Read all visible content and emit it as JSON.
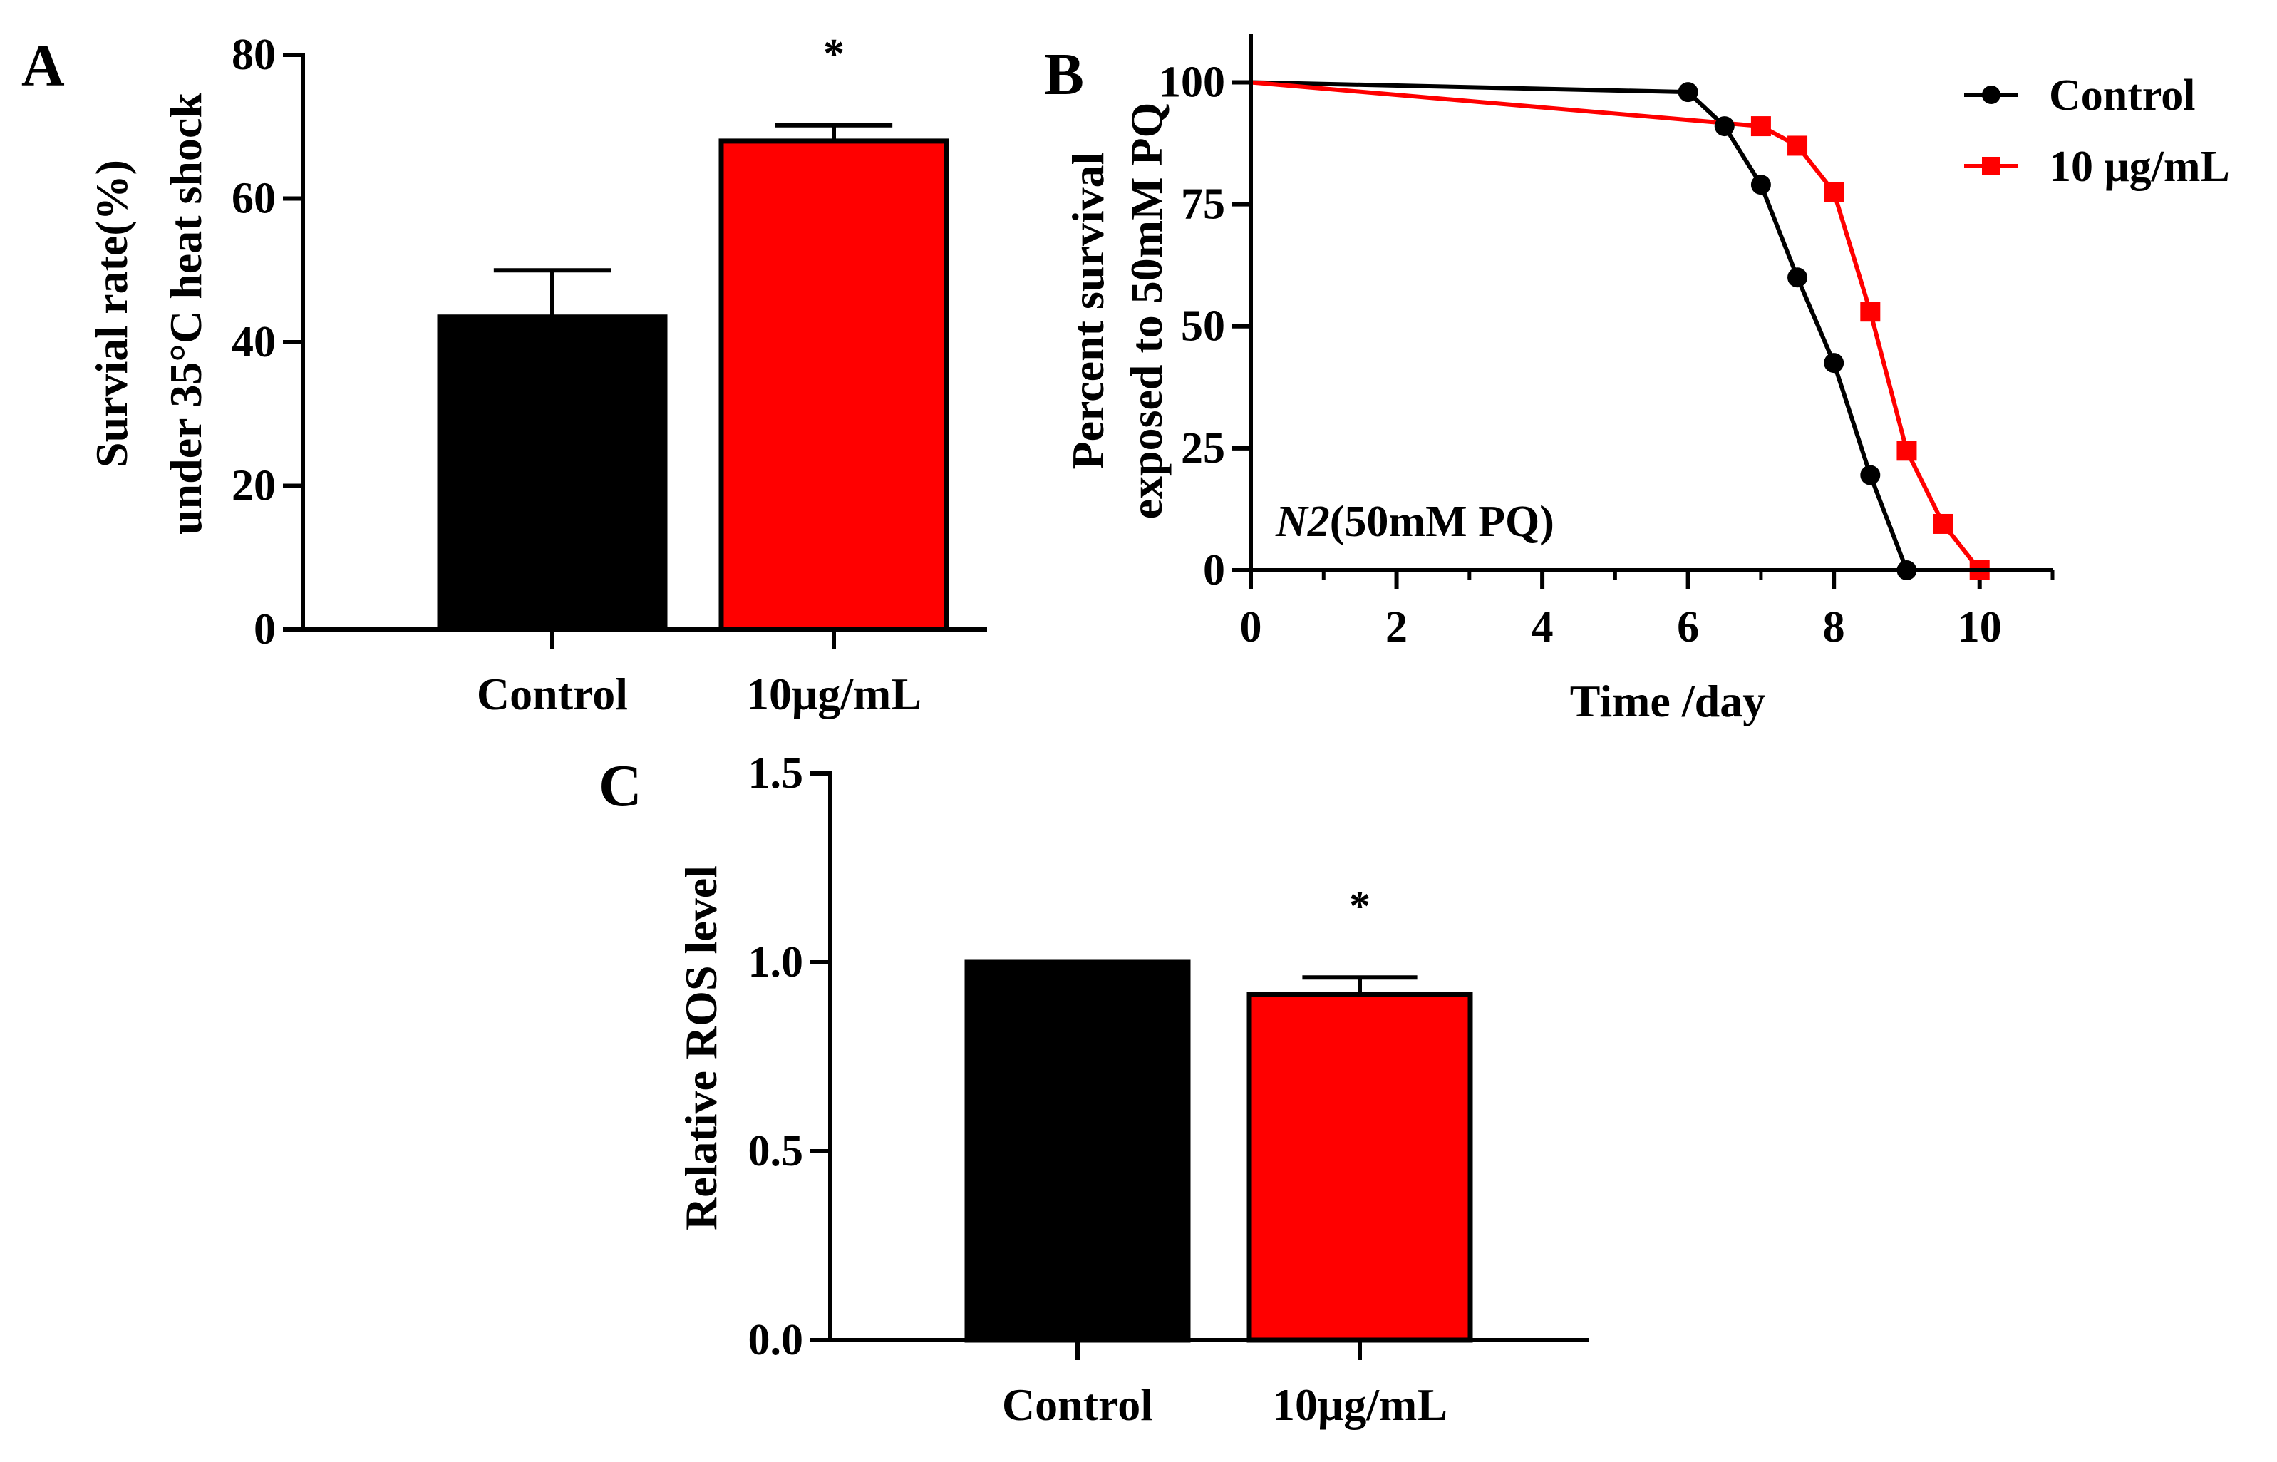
{
  "figure": {
    "colors": {
      "control": "#000000",
      "treated": "#ff0000",
      "axis": "#000000"
    }
  },
  "chart_data": [
    {
      "panel": "A",
      "type": "bar",
      "categories": [
        "Control",
        "10μg/mL"
      ],
      "values": [
        43.5,
        68
      ],
      "errors": [
        6.5,
        2.2
      ],
      "significance": [
        "",
        "*"
      ],
      "ylabel": [
        "Survial rate(%)",
        "under 35°C heat shock"
      ],
      "xlabel": "",
      "ylim": [
        0,
        80
      ],
      "yticks": [
        "0",
        "20",
        "40",
        "60",
        "80"
      ]
    },
    {
      "panel": "B",
      "type": "line",
      "xlabel": "Time /day",
      "ylabel": [
        "Percent survival",
        "exposed to 50mM PQ"
      ],
      "xlim": [
        0,
        11
      ],
      "ylim": [
        0,
        110
      ],
      "xticks": [
        "0",
        "2",
        "4",
        "6",
        "8",
        "10"
      ],
      "yticks": [
        "0",
        "25",
        "50",
        "75",
        "100"
      ],
      "annotation": {
        "italic": "N2",
        "rest": "(50mM PQ)"
      },
      "legend_position": "top-right",
      "series": [
        {
          "name": "Control",
          "marker": "circle",
          "x": [
            0,
            6,
            6.5,
            7,
            7.5,
            8,
            8.5,
            9
          ],
          "y": [
            100,
            98,
            91,
            79,
            60,
            42.5,
            19.5,
            0
          ]
        },
        {
          "name": "10 μg/mL",
          "marker": "square",
          "x": [
            0,
            7,
            7.5,
            8,
            8.5,
            9,
            9.5,
            10
          ],
          "y": [
            100,
            91,
            87,
            77.5,
            53,
            24.5,
            9.5,
            0
          ]
        }
      ]
    },
    {
      "panel": "C",
      "type": "bar",
      "categories": [
        "Control",
        "10μg/mL"
      ],
      "values": [
        1.0,
        0.915
      ],
      "errors": [
        0,
        0.045
      ],
      "significance": [
        "",
        "*"
      ],
      "ylabel": [
        "Relative ROS level"
      ],
      "xlabel": "",
      "ylim": [
        0,
        1.5
      ],
      "yticks": [
        "0.0",
        "0.5",
        "1.0",
        "1.5"
      ]
    }
  ]
}
